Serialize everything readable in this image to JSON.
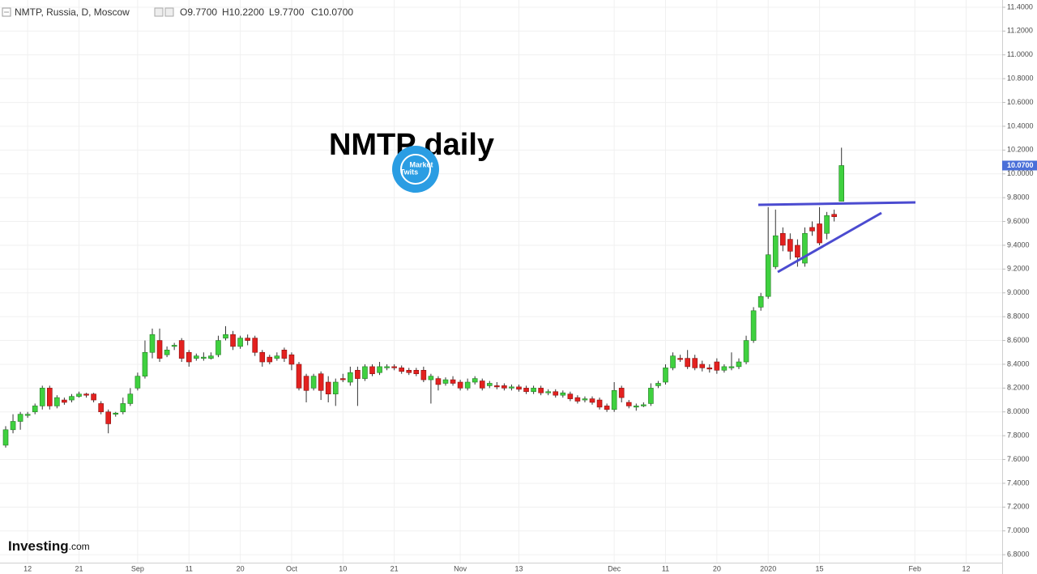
{
  "chart_data": {
    "type": "candlestick",
    "symbol_info": "NMTP, Russia, D, Moscow",
    "ohlc_label": [
      "O9.7700",
      "H10.2200",
      "L9.7700",
      "C10.0700"
    ],
    "annotation": "NMTP daily",
    "watermark": [
      "Market",
      "Twits"
    ],
    "brand": [
      "Investing",
      ".com"
    ],
    "last_value_label": "10.0700",
    "up_color": "#3fd13f",
    "down_color": "#e3211f",
    "grid": true,
    "ylim": [
      6.733,
      11.461
    ],
    "yticks": [
      {
        "value": 6.8,
        "label": "6.8000"
      },
      {
        "value": 7.0,
        "label": "7.0000"
      },
      {
        "value": 7.2,
        "label": "7.2000"
      },
      {
        "value": 7.4,
        "label": "7.4000"
      },
      {
        "value": 7.6,
        "label": "7.6000"
      },
      {
        "value": 7.8,
        "label": "7.8000"
      },
      {
        "value": 8.0,
        "label": "8.0000"
      },
      {
        "value": 8.2,
        "label": "8.2000"
      },
      {
        "value": 8.4,
        "label": "8.4000"
      },
      {
        "value": 8.6,
        "label": "8.6000"
      },
      {
        "value": 8.8,
        "label": "8.8000"
      },
      {
        "value": 9.0,
        "label": "9.0000"
      },
      {
        "value": 9.2,
        "label": "9.2000"
      },
      {
        "value": 9.4,
        "label": "9.4000"
      },
      {
        "value": 9.6,
        "label": "9.6000"
      },
      {
        "value": 9.8,
        "label": "9.8000"
      },
      {
        "value": 10.0,
        "label": "10.0000"
      },
      {
        "value": 10.2,
        "label": "10.2000"
      },
      {
        "value": 10.4,
        "label": "10.4000"
      },
      {
        "value": 10.6,
        "label": "10.6000"
      },
      {
        "value": 10.8,
        "label": "10.8000"
      },
      {
        "value": 11.0,
        "label": "11.0000"
      },
      {
        "value": 11.2,
        "label": "11.2000"
      },
      {
        "value": 11.4,
        "label": "11.4000"
      }
    ],
    "categories": [
      null,
      null,
      null,
      "12",
      null,
      null,
      null,
      null,
      null,
      null,
      "21",
      null,
      null,
      null,
      null,
      null,
      null,
      null,
      "Sep",
      null,
      null,
      null,
      null,
      null,
      null,
      "11",
      null,
      null,
      null,
      null,
      null,
      null,
      "20",
      null,
      null,
      null,
      null,
      null,
      null,
      "Oct",
      null,
      null,
      null,
      null,
      null,
      null,
      "10",
      null,
      null,
      null,
      null,
      null,
      null,
      "21",
      null,
      null,
      null,
      null,
      null,
      null,
      null,
      null,
      "Nov",
      null,
      null,
      null,
      null,
      null,
      null,
      null,
      "13",
      null,
      null,
      null,
      null,
      null,
      null,
      null,
      null,
      null,
      null,
      null,
      null,
      "Dec",
      null,
      null,
      null,
      null,
      null,
      null,
      "11",
      null,
      null,
      null,
      null,
      null,
      null,
      "20",
      null,
      null,
      null,
      null,
      null,
      null,
      "2020",
      null,
      null,
      null,
      null,
      null,
      null,
      "15",
      null,
      null,
      null,
      null,
      null,
      null,
      null,
      null,
      null,
      null,
      null,
      null,
      "Feb",
      null,
      null,
      null,
      null,
      null,
      null,
      "12",
      null,
      null,
      null,
      null
    ],
    "open": [
      7.72,
      7.85,
      7.92,
      7.97,
      8.0,
      8.05,
      8.2,
      8.05,
      8.1,
      8.1,
      8.13,
      8.15,
      8.15,
      8.07,
      8.0,
      7.98,
      8.0,
      8.07,
      8.2,
      8.3,
      8.5,
      8.6,
      8.48,
      8.55,
      8.6,
      8.5,
      8.45,
      8.45,
      8.45,
      8.48,
      8.62,
      8.65,
      8.55,
      8.62,
      8.62,
      8.5,
      8.46,
      8.45,
      8.52,
      8.48,
      8.4,
      8.3,
      8.2,
      8.32,
      8.25,
      8.15,
      8.28,
      8.25,
      8.35,
      8.28,
      8.38,
      8.33,
      8.37,
      8.38,
      8.37,
      8.35,
      8.35,
      8.35,
      8.27,
      8.28,
      8.24,
      8.27,
      8.25,
      8.2,
      8.25,
      8.26,
      8.22,
      8.22,
      8.22,
      8.2,
      8.21,
      8.2,
      8.17,
      8.2,
      8.16,
      8.17,
      8.14,
      8.15,
      8.12,
      8.1,
      8.11,
      8.1,
      8.05,
      8.02,
      8.2,
      8.08,
      8.04,
      8.05,
      8.07,
      8.22,
      8.25,
      8.37,
      8.45,
      8.45,
      8.45,
      8.4,
      8.37,
      8.42,
      8.35,
      8.37,
      8.38,
      8.42,
      8.6,
      8.88,
      8.97,
      9.22,
      9.5,
      9.45,
      9.4,
      9.25,
      9.55,
      9.58,
      9.5,
      9.66,
      9.77,
      null,
      null,
      null,
      null,
      null,
      null,
      null,
      null,
      null,
      null,
      null,
      null,
      null,
      null,
      null,
      null,
      null,
      null,
      null,
      null,
      null
    ],
    "high": [
      7.88,
      7.98,
      8.0,
      8.0,
      8.07,
      8.22,
      8.22,
      8.14,
      8.12,
      8.15,
      8.17,
      8.16,
      8.16,
      8.09,
      8.02,
      8.0,
      8.12,
      8.2,
      8.33,
      8.6,
      8.7,
      8.7,
      8.55,
      8.58,
      8.62,
      8.52,
      8.49,
      8.5,
      8.5,
      8.64,
      8.72,
      8.68,
      8.64,
      8.65,
      8.64,
      8.52,
      8.48,
      8.5,
      8.54,
      8.5,
      8.42,
      8.32,
      8.32,
      8.34,
      8.3,
      8.28,
      8.32,
      8.38,
      8.38,
      8.4,
      8.4,
      8.42,
      8.4,
      8.4,
      8.39,
      8.37,
      8.37,
      8.38,
      8.32,
      8.3,
      8.29,
      8.3,
      8.27,
      8.28,
      8.3,
      8.28,
      8.26,
      8.25,
      8.24,
      8.23,
      8.23,
      8.22,
      8.22,
      8.22,
      8.19,
      8.19,
      8.18,
      8.17,
      8.14,
      8.13,
      8.13,
      8.12,
      8.07,
      8.25,
      8.22,
      8.1,
      8.07,
      8.08,
      8.24,
      8.26,
      8.4,
      8.5,
      8.48,
      8.52,
      8.48,
      8.43,
      8.4,
      8.45,
      8.4,
      8.5,
      8.45,
      8.64,
      8.88,
      9.0,
      9.72,
      9.7,
      9.55,
      9.5,
      9.45,
      9.55,
      9.6,
      9.72,
      9.68,
      9.7,
      10.22,
      null,
      null,
      null,
      null,
      null,
      null,
      null,
      null,
      null,
      null,
      null,
      null,
      null,
      null,
      null,
      null,
      null,
      null,
      null,
      null,
      null
    ],
    "low": [
      7.7,
      7.82,
      7.85,
      7.95,
      7.98,
      8.02,
      8.02,
      8.03,
      8.06,
      8.08,
      8.12,
      8.12,
      8.08,
      7.98,
      7.82,
      7.96,
      7.98,
      8.05,
      8.18,
      8.28,
      8.45,
      8.42,
      8.46,
      8.52,
      8.42,
      8.38,
      8.43,
      8.43,
      8.44,
      8.46,
      8.6,
      8.52,
      8.53,
      8.56,
      8.47,
      8.38,
      8.4,
      8.43,
      8.42,
      8.35,
      8.18,
      8.08,
      8.18,
      8.1,
      8.08,
      8.05,
      8.25,
      8.22,
      8.05,
      8.26,
      8.3,
      8.31,
      8.35,
      8.35,
      8.32,
      8.31,
      8.3,
      8.25,
      8.07,
      8.18,
      8.22,
      8.22,
      8.18,
      8.18,
      8.23,
      8.18,
      8.2,
      8.19,
      8.18,
      8.18,
      8.17,
      8.15,
      8.15,
      8.14,
      8.14,
      8.12,
      8.12,
      8.09,
      8.07,
      8.08,
      8.06,
      8.02,
      8.0,
      8.0,
      8.08,
      8.03,
      8.01,
      8.04,
      8.05,
      8.2,
      8.23,
      8.35,
      8.42,
      8.36,
      8.35,
      8.34,
      8.33,
      8.32,
      8.33,
      8.35,
      8.36,
      8.4,
      8.58,
      8.85,
      8.95,
      9.2,
      9.35,
      9.28,
      9.22,
      9.22,
      9.48,
      9.4,
      9.45,
      9.6,
      9.77,
      null,
      null,
      null,
      null,
      null,
      null,
      null,
      null,
      null,
      null,
      null,
      null,
      null,
      null,
      null,
      null,
      null,
      null,
      null,
      null,
      null
    ],
    "close": [
      7.85,
      7.92,
      7.98,
      7.98,
      8.05,
      8.2,
      8.05,
      8.12,
      8.08,
      8.13,
      8.15,
      8.14,
      8.1,
      8.0,
      7.9,
      7.99,
      8.07,
      8.15,
      8.3,
      8.5,
      8.65,
      8.45,
      8.52,
      8.56,
      8.45,
      8.42,
      8.47,
      8.46,
      8.47,
      8.6,
      8.65,
      8.55,
      8.62,
      8.6,
      8.5,
      8.42,
      8.42,
      8.47,
      8.45,
      8.4,
      8.2,
      8.18,
      8.3,
      8.18,
      8.15,
      8.25,
      8.27,
      8.33,
      8.28,
      8.38,
      8.32,
      8.38,
      8.38,
      8.37,
      8.34,
      8.33,
      8.32,
      8.27,
      8.3,
      8.23,
      8.27,
      8.24,
      8.2,
      8.25,
      8.28,
      8.2,
      8.24,
      8.21,
      8.2,
      8.21,
      8.19,
      8.17,
      8.2,
      8.16,
      8.17,
      8.14,
      8.16,
      8.11,
      8.09,
      8.11,
      8.08,
      8.04,
      8.02,
      8.18,
      8.12,
      8.05,
      8.05,
      8.06,
      8.2,
      8.24,
      8.37,
      8.47,
      8.44,
      8.38,
      8.37,
      8.37,
      8.36,
      8.35,
      8.38,
      8.38,
      8.42,
      8.6,
      8.85,
      8.97,
      9.32,
      9.48,
      9.4,
      9.35,
      9.3,
      9.5,
      9.52,
      9.42,
      9.65,
      9.64,
      10.07,
      null,
      null,
      null,
      null,
      null,
      null,
      null,
      null,
      null,
      null,
      null,
      null,
      null,
      null,
      null,
      null,
      null,
      null,
      null,
      null,
      null
    ]
  }
}
